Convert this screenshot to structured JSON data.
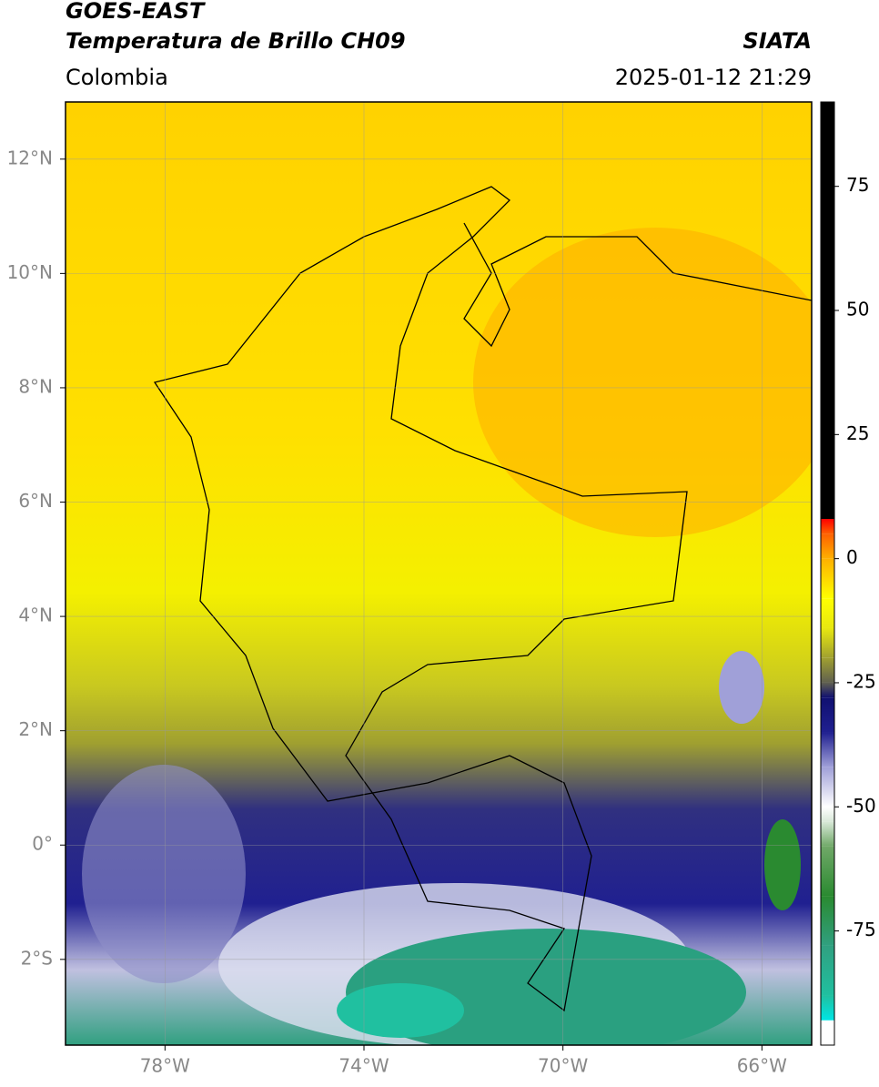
{
  "header": {
    "title": "GOES-EAST",
    "subtitle": "Temperatura de Brillo CH09",
    "source": "SIATA",
    "region": "Colombia",
    "datetime": "2025-01-12 21:29"
  },
  "map": {
    "xlim": [
      -80,
      -65
    ],
    "ylim": [
      -3.5,
      13
    ],
    "xticks": [
      {
        "value": -78,
        "label": "78°W"
      },
      {
        "value": -74,
        "label": "74°W"
      },
      {
        "value": -70,
        "label": "70°W"
      },
      {
        "value": -66,
        "label": "66°W"
      }
    ],
    "yticks": [
      {
        "value": 12,
        "label": "12°N"
      },
      {
        "value": 10,
        "label": "10°N"
      },
      {
        "value": 8,
        "label": "8°N"
      },
      {
        "value": 6,
        "label": "6°N"
      },
      {
        "value": 4,
        "label": "4°N"
      },
      {
        "value": 2,
        "label": "2°N"
      },
      {
        "value": 0,
        "label": "0°"
      },
      {
        "value": -2,
        "label": "2°S"
      }
    ],
    "grid": true
  },
  "colorbar": {
    "lim": [
      -98,
      92
    ],
    "ticks": [
      75,
      50,
      25,
      0,
      -25,
      -50,
      -75
    ],
    "colormap": [
      {
        "value": -98,
        "color": "#ffffff"
      },
      {
        "value": -93,
        "color": "#ffffff"
      },
      {
        "value": -93,
        "color": "#00e5e5"
      },
      {
        "value": -88,
        "color": "#20c0a0"
      },
      {
        "value": -78,
        "color": "#30a080"
      },
      {
        "value": -68,
        "color": "#2a8a30"
      },
      {
        "value": -58,
        "color": "#70a868"
      },
      {
        "value": -53,
        "color": "#d8e8d8"
      },
      {
        "value": -50,
        "color": "#ffffff"
      },
      {
        "value": -42,
        "color": "#a0a0d8"
      },
      {
        "value": -35,
        "color": "#202090"
      },
      {
        "value": -28,
        "color": "#101070"
      },
      {
        "value": -25,
        "color": "#606050"
      },
      {
        "value": -20,
        "color": "#a0a030"
      },
      {
        "value": -14,
        "color": "#e8e810"
      },
      {
        "value": -8,
        "color": "#ffff00"
      },
      {
        "value": 0,
        "color": "#ffb000"
      },
      {
        "value": 5,
        "color": "#ff6000"
      },
      {
        "value": 8,
        "color": "#ff0000"
      },
      {
        "value": 8,
        "color": "#000000"
      },
      {
        "value": 92,
        "color": "#000000"
      }
    ]
  }
}
